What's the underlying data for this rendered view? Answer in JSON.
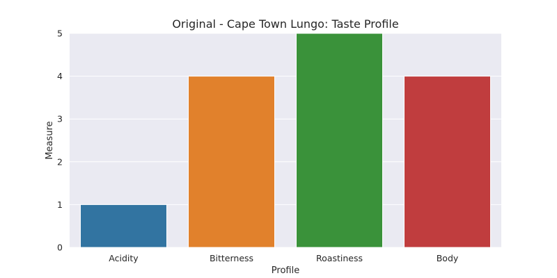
{
  "chart_data": {
    "type": "bar",
    "title": "Original - Cape Town Lungo: Taste Profile",
    "xlabel": "Profile",
    "ylabel": "Measure",
    "categories": [
      "Acidity",
      "Bitterness",
      "Roastiness",
      "Body"
    ],
    "values": [
      1,
      4,
      5,
      4
    ],
    "colors": [
      "#3274a1",
      "#e1812c",
      "#3a923a",
      "#c03d3e"
    ],
    "ylim": [
      0,
      5
    ],
    "yticks": [
      0,
      1,
      2,
      3,
      4,
      5
    ],
    "grid": true,
    "background_color": "#eaeaf2",
    "grid_color": "#ffffff"
  }
}
